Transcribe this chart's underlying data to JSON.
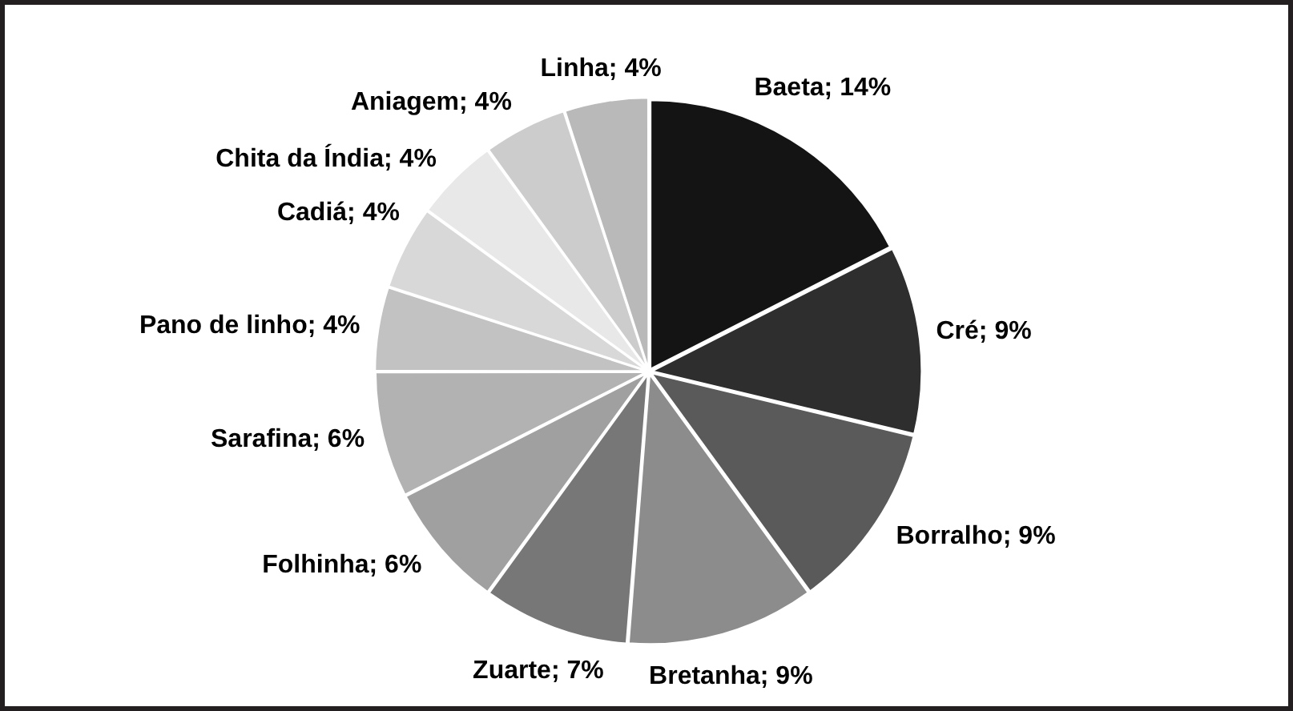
{
  "chart_data": {
    "type": "pie",
    "categories": [
      "Baeta",
      "Cré",
      "Borralho",
      "Bretanha",
      "Zuarte",
      "Folhinha",
      "Sarafina",
      "Pano de linho",
      "Cadiá",
      "Chita da Índia",
      "Aniagem",
      "Linha"
    ],
    "values": [
      14,
      9,
      9,
      9,
      7,
      6,
      6,
      4,
      4,
      4,
      4,
      4
    ],
    "value_labels": [
      "14%",
      "9%",
      "9%",
      "9%",
      "7%",
      "6%",
      "6%",
      "4%",
      "4%",
      "4%",
      "4%",
      "4%"
    ],
    "colors": [
      "#141414",
      "#2e2e2e",
      "#5a5a5a",
      "#8c8c8c",
      "#777777",
      "#a0a0a0",
      "#b2b2b2",
      "#c2c2c2",
      "#d8d8d8",
      "#e8e8e8",
      "#cccccc",
      "#b9b9b9"
    ]
  }
}
